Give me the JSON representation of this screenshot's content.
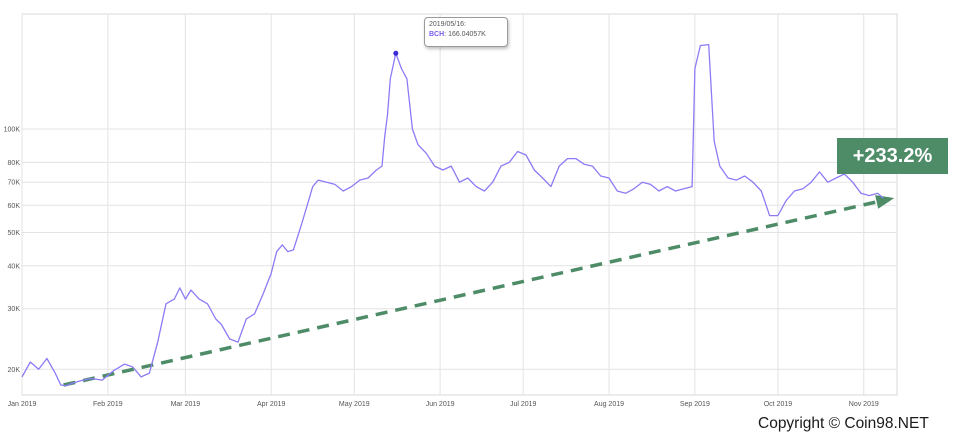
{
  "chart_data": {
    "type": "line",
    "scale": "log",
    "grid": true,
    "series": [
      {
        "name": "BCH",
        "color": "#8b7cf6",
        "points": [
          [
            "2019-01-01",
            19000
          ],
          [
            "2019-01-04",
            21000
          ],
          [
            "2019-01-07",
            20000
          ],
          [
            "2019-01-10",
            21500
          ],
          [
            "2019-01-13",
            19500
          ],
          [
            "2019-01-15",
            18000
          ],
          [
            "2019-01-17",
            17900
          ],
          [
            "2019-01-19",
            18200
          ],
          [
            "2019-01-22",
            18500
          ],
          [
            "2019-01-26",
            18800
          ],
          [
            "2019-01-30",
            18600
          ],
          [
            "2019-02-03",
            19800
          ],
          [
            "2019-02-07",
            20700
          ],
          [
            "2019-02-10",
            20300
          ],
          [
            "2019-02-13",
            19000
          ],
          [
            "2019-02-16",
            19500
          ],
          [
            "2019-02-19",
            24000
          ],
          [
            "2019-02-22",
            31000
          ],
          [
            "2019-02-25",
            32000
          ],
          [
            "2019-02-27",
            34500
          ],
          [
            "2019-03-01",
            32000
          ],
          [
            "2019-03-03",
            34000
          ],
          [
            "2019-03-06",
            32000
          ],
          [
            "2019-03-09",
            31000
          ],
          [
            "2019-03-12",
            28000
          ],
          [
            "2019-03-14",
            27000
          ],
          [
            "2019-03-17",
            24500
          ],
          [
            "2019-03-20",
            24000
          ],
          [
            "2019-03-23",
            28000
          ],
          [
            "2019-03-26",
            29000
          ],
          [
            "2019-03-29",
            33000
          ],
          [
            "2019-04-01",
            38000
          ],
          [
            "2019-04-03",
            44000
          ],
          [
            "2019-04-05",
            46000
          ],
          [
            "2019-04-07",
            44000
          ],
          [
            "2019-04-09",
            44500
          ],
          [
            "2019-04-12",
            53000
          ],
          [
            "2019-04-14",
            60000
          ],
          [
            "2019-04-16",
            68000
          ],
          [
            "2019-04-18",
            71000
          ],
          [
            "2019-04-21",
            70000
          ],
          [
            "2019-04-24",
            69000
          ],
          [
            "2019-04-27",
            66000
          ],
          [
            "2019-04-30",
            68000
          ],
          [
            "2019-05-03",
            71000
          ],
          [
            "2019-05-06",
            72000
          ],
          [
            "2019-05-09",
            76000
          ],
          [
            "2019-05-11",
            78000
          ],
          [
            "2019-05-12",
            95000
          ],
          [
            "2019-05-13",
            110000
          ],
          [
            "2019-05-14",
            140000
          ],
          [
            "2019-05-16",
            166040
          ],
          [
            "2019-05-18",
            150000
          ],
          [
            "2019-05-20",
            140000
          ],
          [
            "2019-05-22",
            100000
          ],
          [
            "2019-05-24",
            90000
          ],
          [
            "2019-05-27",
            85000
          ],
          [
            "2019-05-30",
            78000
          ],
          [
            "2019-06-02",
            76000
          ],
          [
            "2019-06-05",
            78000
          ],
          [
            "2019-06-08",
            70000
          ],
          [
            "2019-06-11",
            72000
          ],
          [
            "2019-06-14",
            68000
          ],
          [
            "2019-06-17",
            66000
          ],
          [
            "2019-06-20",
            70000
          ],
          [
            "2019-06-23",
            78000
          ],
          [
            "2019-06-26",
            80000
          ],
          [
            "2019-06-29",
            86000
          ],
          [
            "2019-07-02",
            84000
          ],
          [
            "2019-07-05",
            76000
          ],
          [
            "2019-07-08",
            72000
          ],
          [
            "2019-07-11",
            68000
          ],
          [
            "2019-07-14",
            78000
          ],
          [
            "2019-07-17",
            82000
          ],
          [
            "2019-07-20",
            82000
          ],
          [
            "2019-07-23",
            79000
          ],
          [
            "2019-07-26",
            78000
          ],
          [
            "2019-07-29",
            73000
          ],
          [
            "2019-08-01",
            72000
          ],
          [
            "2019-08-04",
            66000
          ],
          [
            "2019-08-07",
            65000
          ],
          [
            "2019-08-10",
            67000
          ],
          [
            "2019-08-13",
            70000
          ],
          [
            "2019-08-16",
            69000
          ],
          [
            "2019-08-19",
            66000
          ],
          [
            "2019-08-22",
            68000
          ],
          [
            "2019-08-25",
            66000
          ],
          [
            "2019-08-28",
            67000
          ],
          [
            "2019-08-31",
            68000
          ],
          [
            "2019-09-01",
            150000
          ],
          [
            "2019-09-03",
            175000
          ],
          [
            "2019-09-06",
            176000
          ],
          [
            "2019-09-08",
            92000
          ],
          [
            "2019-09-10",
            78000
          ],
          [
            "2019-09-13",
            72000
          ],
          [
            "2019-09-16",
            71000
          ],
          [
            "2019-09-19",
            73000
          ],
          [
            "2019-09-22",
            70000
          ],
          [
            "2019-09-25",
            66000
          ],
          [
            "2019-09-28",
            56000
          ],
          [
            "2019-10-01",
            56000
          ],
          [
            "2019-10-04",
            62000
          ],
          [
            "2019-10-07",
            66000
          ],
          [
            "2019-10-10",
            67000
          ],
          [
            "2019-10-13",
            70000
          ],
          [
            "2019-10-16",
            75000
          ],
          [
            "2019-10-19",
            70000
          ],
          [
            "2019-10-22",
            72000
          ],
          [
            "2019-10-25",
            74000
          ],
          [
            "2019-10-28",
            70000
          ],
          [
            "2019-10-31",
            65000
          ],
          [
            "2019-11-03",
            64000
          ],
          [
            "2019-11-06",
            65000
          ],
          [
            "2019-11-08",
            63000
          ]
        ]
      }
    ],
    "y_ticks": [
      {
        "value": 20000,
        "label": "20K"
      },
      {
        "value": 30000,
        "label": "30K"
      },
      {
        "value": 40000,
        "label": "40K"
      },
      {
        "value": 50000,
        "label": "50K"
      },
      {
        "value": 60000,
        "label": "60K"
      },
      {
        "value": 70000,
        "label": "70K"
      },
      {
        "value": 80000,
        "label": "80K"
      },
      {
        "value": 100000,
        "label": "100K"
      }
    ],
    "x_ticks": [
      {
        "date": "2019-01-01",
        "label": "Jan 2019"
      },
      {
        "date": "2019-02-01",
        "label": "Feb 2019"
      },
      {
        "date": "2019-03-01",
        "label": "Mar 2019"
      },
      {
        "date": "2019-04-01",
        "label": "Apr 2019"
      },
      {
        "date": "2019-05-01",
        "label": "May 2019"
      },
      {
        "date": "2019-06-01",
        "label": "Jun 2019"
      },
      {
        "date": "2019-07-01",
        "label": "Jul 2019"
      },
      {
        "date": "2019-08-01",
        "label": "Aug 2019"
      },
      {
        "date": "2019-09-01",
        "label": "Sep 2019"
      },
      {
        "date": "2019-10-01",
        "label": "Oct 2019"
      },
      {
        "date": "2019-11-01",
        "label": "Nov 2019"
      }
    ],
    "tooltip": {
      "date": "2019/05/16:",
      "series": "BCH",
      "value": "166.04057K",
      "point": [
        "2019-05-16",
        166040
      ]
    },
    "trend_arrow": {
      "color": "#4e8c68",
      "start": [
        "2019-01-16",
        18000
      ],
      "end": [
        "2019-11-12",
        63000
      ]
    },
    "annotation": "+233.2%",
    "annotation_color": "#4e8c68"
  },
  "copyright": "Copyright © Coin98.NET"
}
